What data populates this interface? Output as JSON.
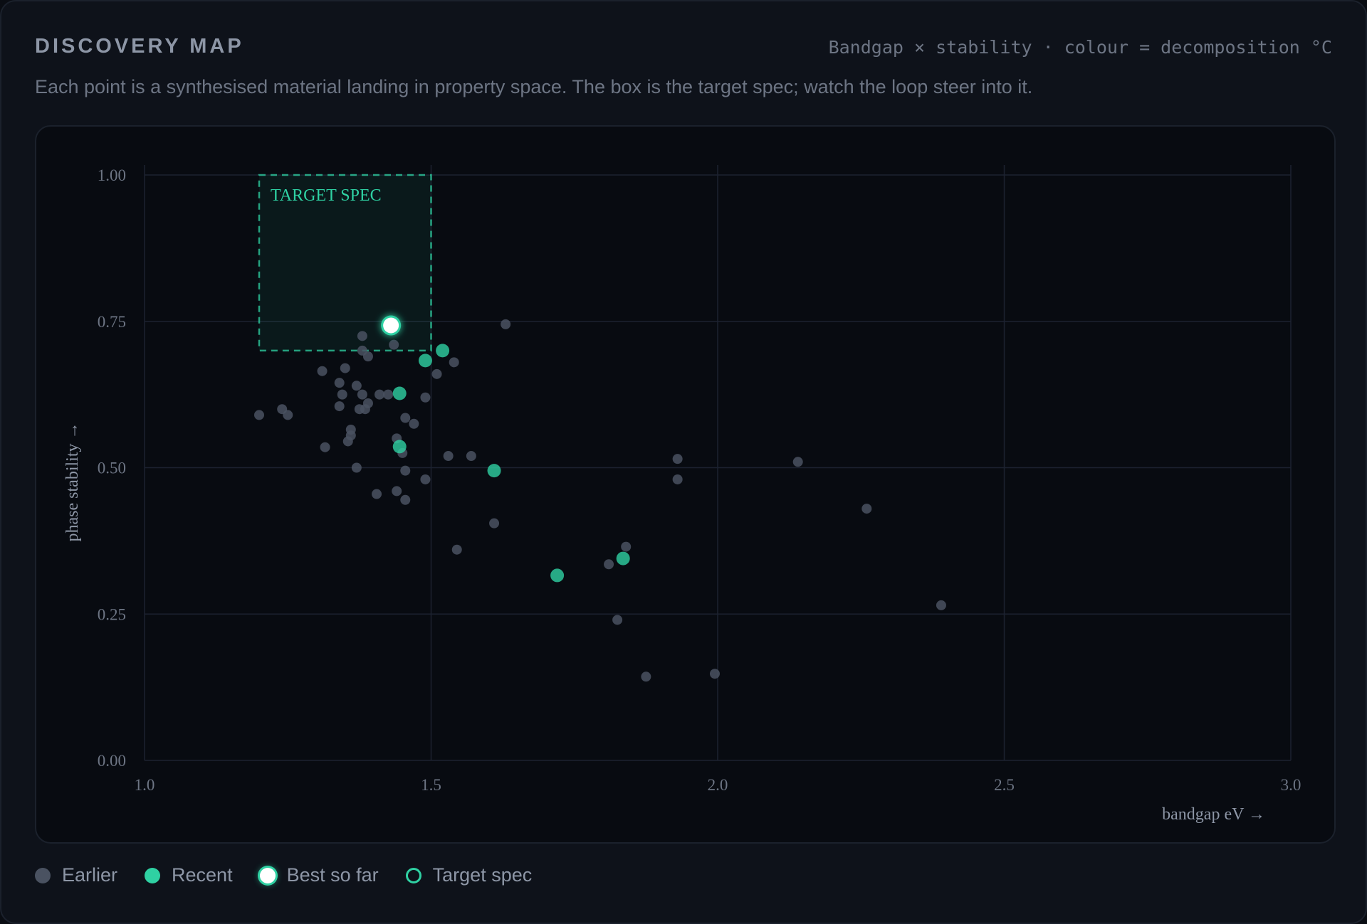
{
  "header": {
    "title": "DISCOVERY MAP",
    "caption": "Bandgap × stability · colour = decomposition °C",
    "subtitle": "Each point is a synthesised material landing in property space. The box is the target spec; watch the loop steer into it."
  },
  "colors": {
    "earlier": "#4a5261",
    "recent": "#2fd1a3",
    "best": "#ffffff",
    "target": "#2fd1a3",
    "grid": "#1c2230",
    "tick": "#6d7584"
  },
  "legend": {
    "earlier": "Earlier",
    "recent": "Recent",
    "best": "Best so far",
    "target": "Target spec"
  },
  "chart_data": {
    "type": "scatter",
    "xlabel": "bandgap eV →",
    "ylabel": "phase stability →",
    "xlim": [
      1.0,
      3.0
    ],
    "ylim": [
      0.0,
      1.0
    ],
    "x_ticks": [
      "1.0",
      "1.5",
      "2.0",
      "2.5",
      "3.0"
    ],
    "y_ticks": [
      "0.00",
      "0.25",
      "0.50",
      "0.75",
      "1.00"
    ],
    "grid": true,
    "target_spec": {
      "label": "TARGET SPEC",
      "x": [
        1.2,
        1.5
      ],
      "y": [
        0.7,
        1.0
      ]
    },
    "series": [
      {
        "name": "Earlier",
        "points": [
          [
            1.63,
            0.745
          ],
          [
            1.38,
            0.725
          ],
          [
            1.435,
            0.71
          ],
          [
            1.38,
            0.7
          ],
          [
            1.39,
            0.69
          ],
          [
            1.54,
            0.68
          ],
          [
            1.35,
            0.67
          ],
          [
            1.31,
            0.665
          ],
          [
            1.51,
            0.66
          ],
          [
            1.34,
            0.645
          ],
          [
            1.37,
            0.64
          ],
          [
            1.38,
            0.625
          ],
          [
            1.345,
            0.625
          ],
          [
            1.41,
            0.625
          ],
          [
            1.425,
            0.625
          ],
          [
            1.49,
            0.62
          ],
          [
            1.39,
            0.61
          ],
          [
            1.34,
            0.605
          ],
          [
            1.375,
            0.6
          ],
          [
            1.385,
            0.6
          ],
          [
            1.24,
            0.6
          ],
          [
            1.2,
            0.59
          ],
          [
            1.25,
            0.59
          ],
          [
            1.455,
            0.585
          ],
          [
            1.47,
            0.575
          ],
          [
            1.36,
            0.565
          ],
          [
            1.36,
            0.555
          ],
          [
            1.355,
            0.545
          ],
          [
            1.44,
            0.55
          ],
          [
            1.315,
            0.535
          ],
          [
            1.45,
            0.525
          ],
          [
            1.53,
            0.52
          ],
          [
            1.57,
            0.52
          ],
          [
            1.93,
            0.515
          ],
          [
            2.14,
            0.51
          ],
          [
            1.37,
            0.5
          ],
          [
            1.455,
            0.495
          ],
          [
            1.49,
            0.48
          ],
          [
            1.93,
            0.48
          ],
          [
            1.44,
            0.46
          ],
          [
            1.405,
            0.455
          ],
          [
            1.455,
            0.445
          ],
          [
            2.26,
            0.43
          ],
          [
            1.61,
            0.405
          ],
          [
            1.84,
            0.365
          ],
          [
            1.545,
            0.36
          ],
          [
            1.81,
            0.335
          ],
          [
            2.39,
            0.265
          ],
          [
            1.825,
            0.24
          ],
          [
            1.995,
            0.148
          ],
          [
            1.875,
            0.143
          ]
        ]
      },
      {
        "name": "Recent",
        "points": [
          [
            1.52,
            0.7
          ],
          [
            1.49,
            0.683
          ],
          [
            1.445,
            0.627
          ],
          [
            1.445,
            0.536
          ],
          [
            1.61,
            0.495
          ],
          [
            1.835,
            0.345
          ],
          [
            1.72,
            0.316
          ]
        ]
      },
      {
        "name": "Best so far",
        "points": [
          [
            1.43,
            0.743
          ]
        ]
      }
    ]
  }
}
